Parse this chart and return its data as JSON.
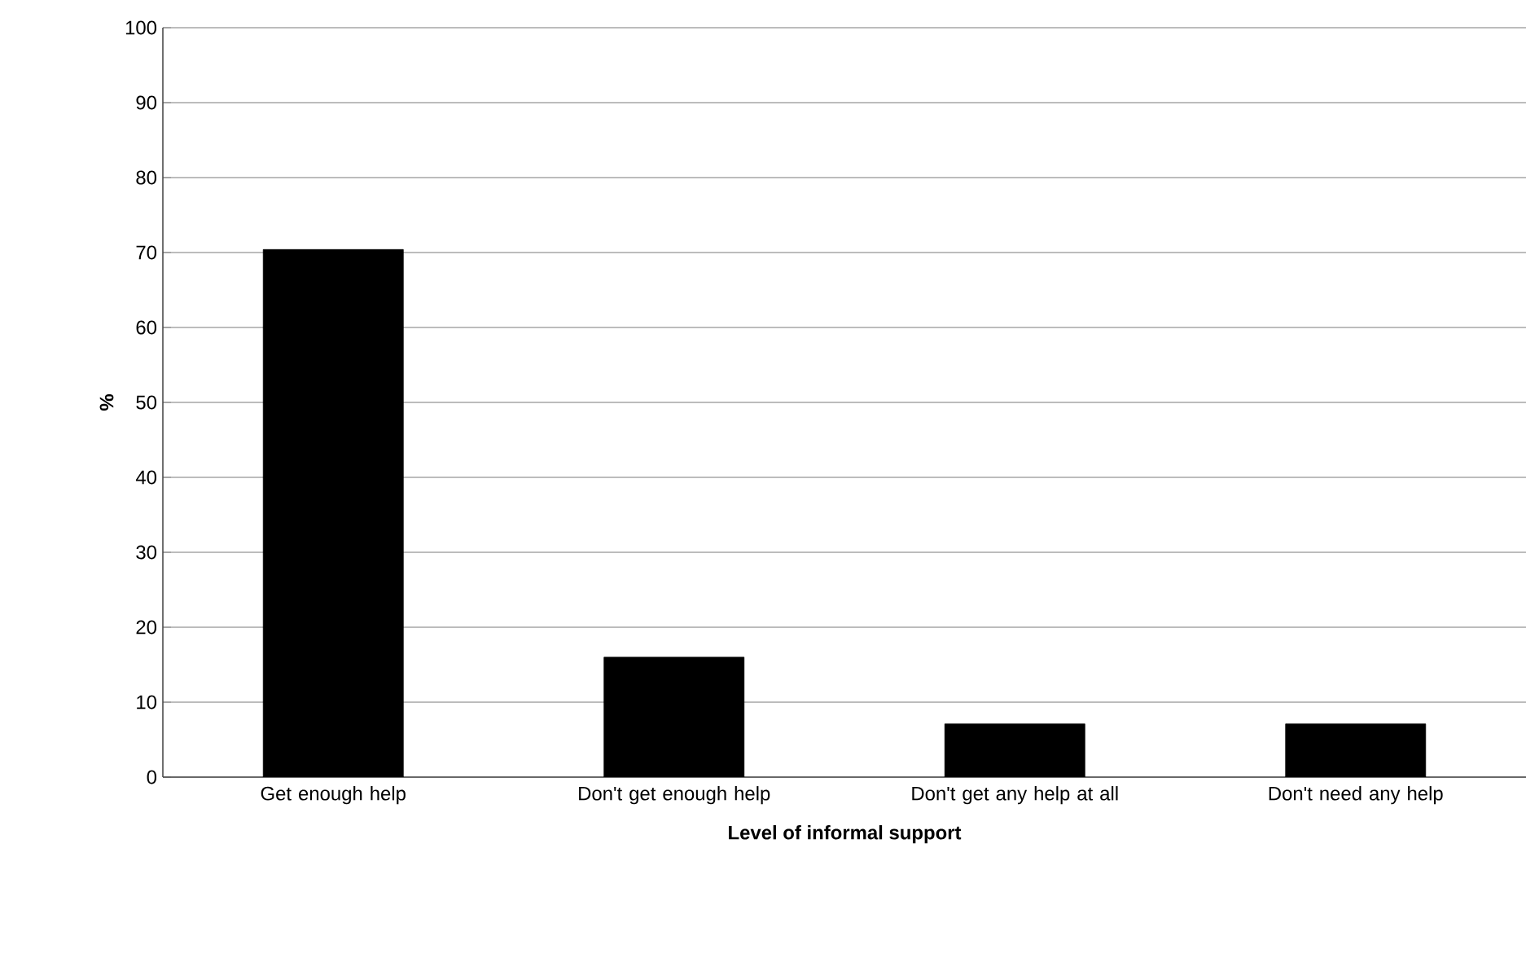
{
  "chart_data": {
    "type": "bar",
    "xlabel": "Level of informal support",
    "ylabel": "%",
    "categories": [
      "Get enough help",
      "Don't get enough help",
      "Don't get any help at all",
      "Don't need any help"
    ],
    "values": [
      70.4,
      16,
      7.1,
      7.1
    ],
    "color": "#000000",
    "ylim": [
      0,
      100
    ],
    "yticks": [
      0,
      10,
      20,
      30,
      40,
      50,
      60,
      70,
      80,
      90,
      100
    ],
    "grid": "y"
  }
}
